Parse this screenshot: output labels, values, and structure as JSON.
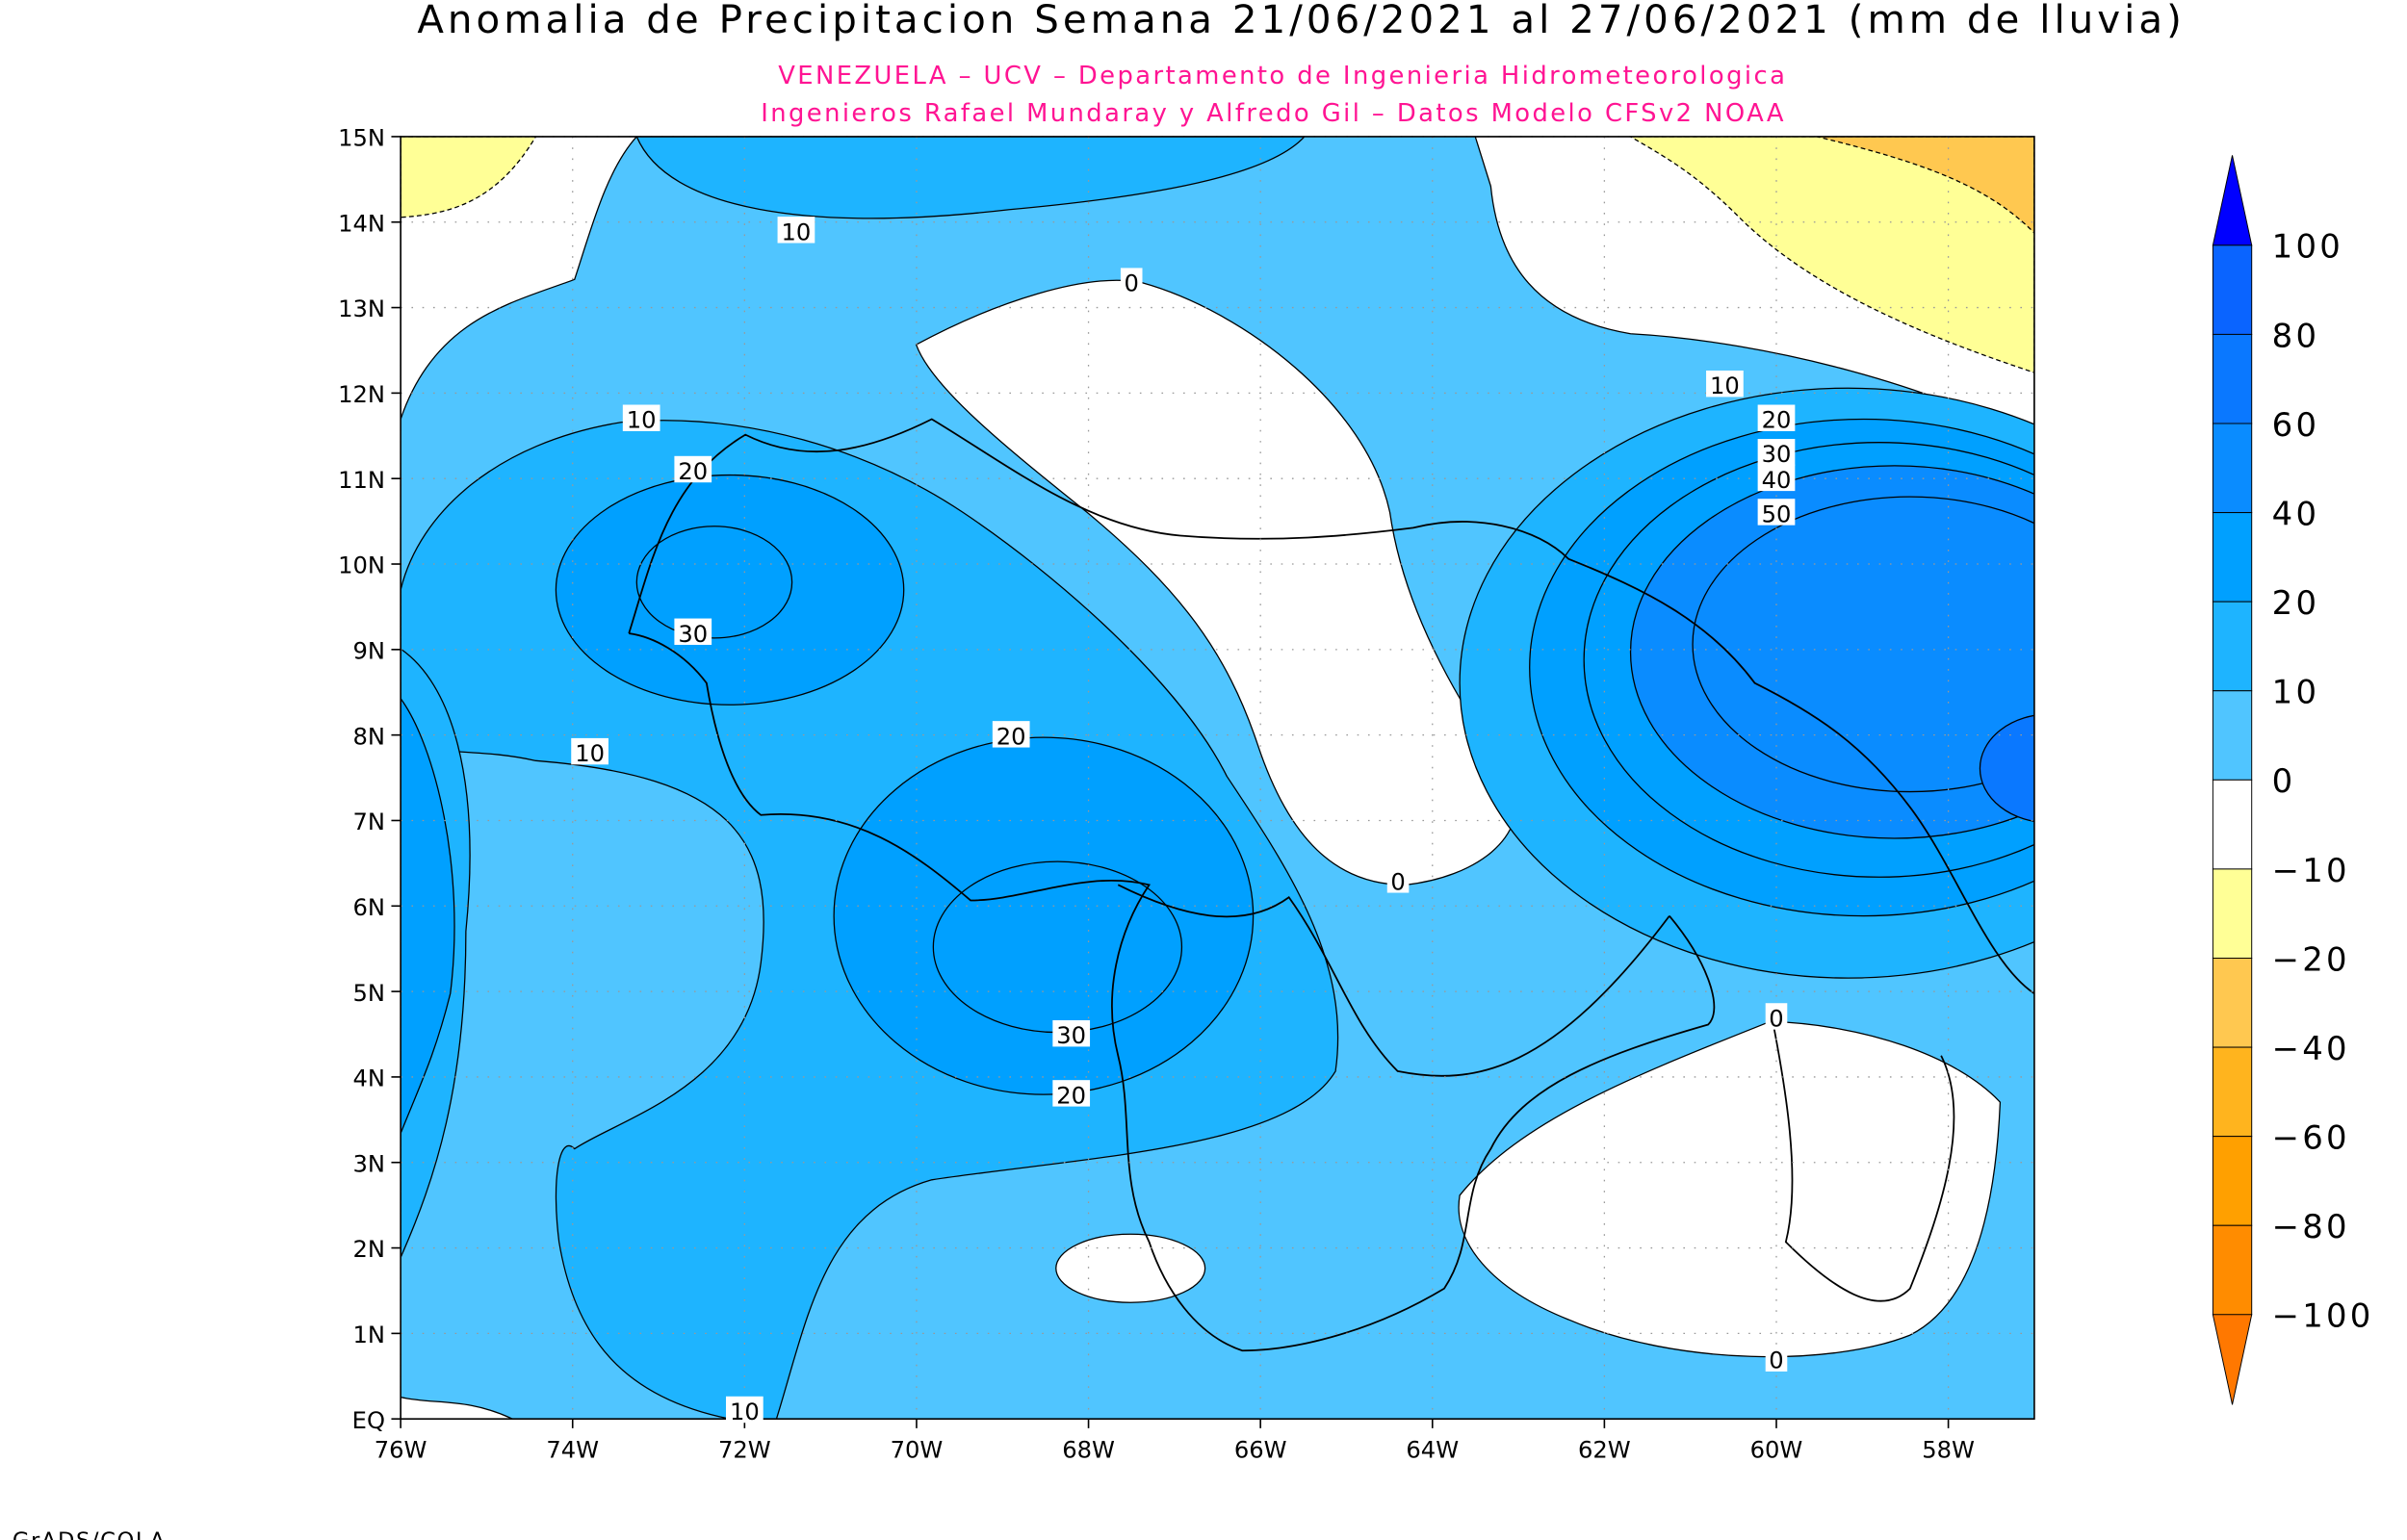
{
  "chart_data": {
    "type": "heatmap",
    "title": "Anomalia de Precipitacion Semana 21/06/2021 al 27/06/2021 (mm de lluvia)",
    "subtitle_lines": [
      "VENEZUELA – UCV – Departamento de Ingenieria Hidrometeorologica",
      "Ingenieros Rafael Mundaray y Alfredo Gil – Datos Modelo CFSv2 NOAA"
    ],
    "footer": "GrADS/COLA",
    "x_range": [
      -76,
      -57
    ],
    "y_range": [
      0,
      15
    ],
    "x_ticks": [
      "76W",
      "74W",
      "72W",
      "70W",
      "68W",
      "66W",
      "64W",
      "62W",
      "60W",
      "58W"
    ],
    "y_ticks": [
      "EQ",
      "1N",
      "2N",
      "3N",
      "4N",
      "5N",
      "6N",
      "7N",
      "8N",
      "9N",
      "10N",
      "11N",
      "12N",
      "13N",
      "14N",
      "15N"
    ],
    "grid": true,
    "colorbar": {
      "position": "right",
      "labels": [
        "100",
        "80",
        "60",
        "40",
        "20",
        "10",
        "0",
        "−10",
        "−20",
        "−40",
        "−60",
        "−80",
        "−100"
      ],
      "colors": [
        "#0000ff",
        "#0a64ff",
        "#0a78ff",
        "#0a8cff",
        "#00a0ff",
        "#1eb4ff",
        "#50c5ff",
        "#ffffff",
        "#ffff96",
        "#ffc850",
        "#ffb41e",
        "#ffa000",
        "#ff8c00",
        "#ff7800"
      ]
    },
    "contour_labels": [
      {
        "text": "10",
        "lon": -71.4,
        "lat": 13.9
      },
      {
        "text": "0",
        "lon": -67.5,
        "lat": 13.3
      },
      {
        "text": "10",
        "lon": -73.2,
        "lat": 11.7
      },
      {
        "text": "20",
        "lon": -72.6,
        "lat": 11.1
      },
      {
        "text": "30",
        "lon": -72.6,
        "lat": 9.2
      },
      {
        "text": "10",
        "lon": -73.8,
        "lat": 7.8
      },
      {
        "text": "20",
        "lon": -68.9,
        "lat": 8.0
      },
      {
        "text": "30",
        "lon": -68.2,
        "lat": 4.5
      },
      {
        "text": "20",
        "lon": -68.2,
        "lat": 3.8
      },
      {
        "text": "0",
        "lon": -64.4,
        "lat": 6.3
      },
      {
        "text": "10",
        "lon": -72.0,
        "lat": 0.1
      },
      {
        "text": "10",
        "lon": -60.6,
        "lat": 12.1
      },
      {
        "text": "20",
        "lon": -60.0,
        "lat": 11.7
      },
      {
        "text": "30",
        "lon": -60.0,
        "lat": 11.3
      },
      {
        "text": "40",
        "lon": -60.0,
        "lat": 11.0
      },
      {
        "text": "50",
        "lon": -60.0,
        "lat": 10.6
      },
      {
        "text": "0",
        "lon": -60.0,
        "lat": 4.7
      },
      {
        "text": "0",
        "lon": -60.0,
        "lat": 0.7
      }
    ]
  }
}
